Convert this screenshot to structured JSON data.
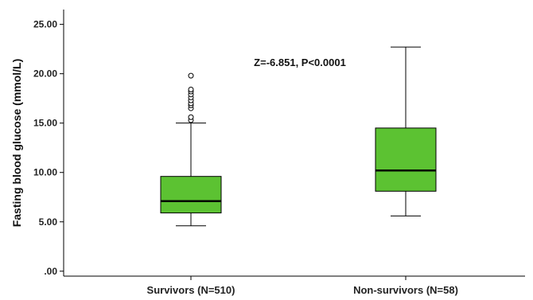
{
  "chart_data": {
    "type": "box",
    "title": "",
    "xlabel": "",
    "ylabel": "Fasting blood glucose (mmol/L)",
    "ylim": [
      -0.5,
      26.5
    ],
    "y_ticks": [
      0,
      5,
      10,
      15,
      20,
      25
    ],
    "y_tick_labels": [
      ".00",
      "5.00",
      "10.00",
      "15.00",
      "20.00",
      "25.00"
    ],
    "grid": false,
    "annotation": "Z=-6.851, P<0.0001",
    "box_color": "#5cc232",
    "categories": [
      "Survivors (N=510)",
      "Non-survivors (N=58)"
    ],
    "boxes": [
      {
        "whisker_low": 4.6,
        "q1": 5.9,
        "median": 7.1,
        "q3": 9.6,
        "whisker_high": 15.0,
        "outliers": [
          15.3,
          15.6,
          16.5,
          16.8,
          17.0,
          17.3,
          17.6,
          17.9,
          18.2,
          18.4,
          19.8
        ]
      },
      {
        "whisker_low": 5.6,
        "q1": 8.1,
        "median": 10.2,
        "q3": 14.5,
        "whisker_high": 22.7,
        "outliers": []
      }
    ]
  }
}
